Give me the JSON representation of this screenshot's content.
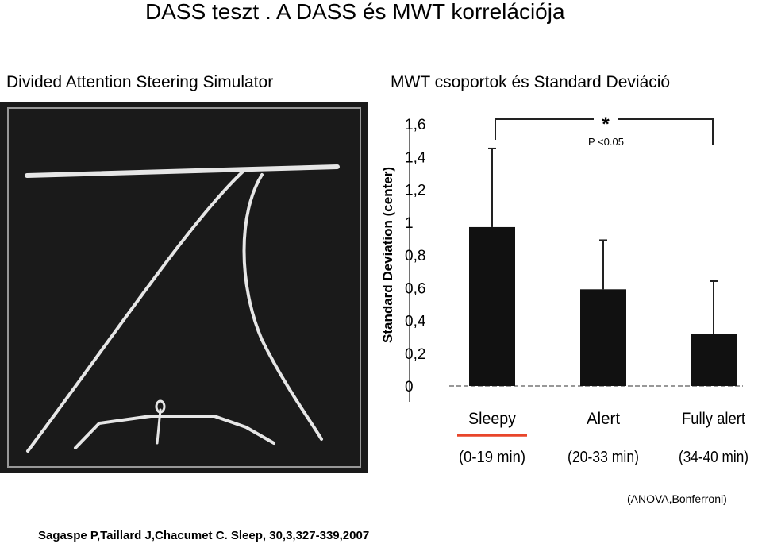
{
  "title": "DASS  teszt . A  DASS és MWT korrelációja",
  "left_subtitle": "Divided Attention Steering Simulator",
  "right_subtitle": "MWT csoportok és Standard Deviáció",
  "stat_note": "(ANOVA,Bonferroni)",
  "citation": "Sagaspe P,Taillard J,Chacumet C. Sleep, 30,3,327-339,2007",
  "colors": {
    "bar": "#111111",
    "highlight": "#e8452a",
    "panel": "#1a1a1a",
    "track": "#e6e6e6"
  },
  "chart_data": {
    "type": "bar",
    "ylabel": "Standard Deviation (center)",
    "ylim": [
      0,
      1.6
    ],
    "yticks": [
      "0",
      "0,2",
      "0,4",
      "0,6",
      "0,8",
      "1",
      "1,2",
      "1,4",
      "1,6"
    ],
    "categories": [
      "Sleepy",
      "Alert",
      "Fully alert"
    ],
    "category_ranges": [
      "(0-19 min)",
      "(20-33 min)",
      "(34-40 min)"
    ],
    "values": [
      0.97,
      0.59,
      0.32
    ],
    "error_upper": [
      1.45,
      0.89,
      0.64
    ],
    "significance": {
      "symbol": "*",
      "label": "P <0.05",
      "between": [
        "Sleepy",
        "Fully alert"
      ]
    },
    "highlighted_category": "Sleepy",
    "grid": false,
    "legend": "none"
  }
}
